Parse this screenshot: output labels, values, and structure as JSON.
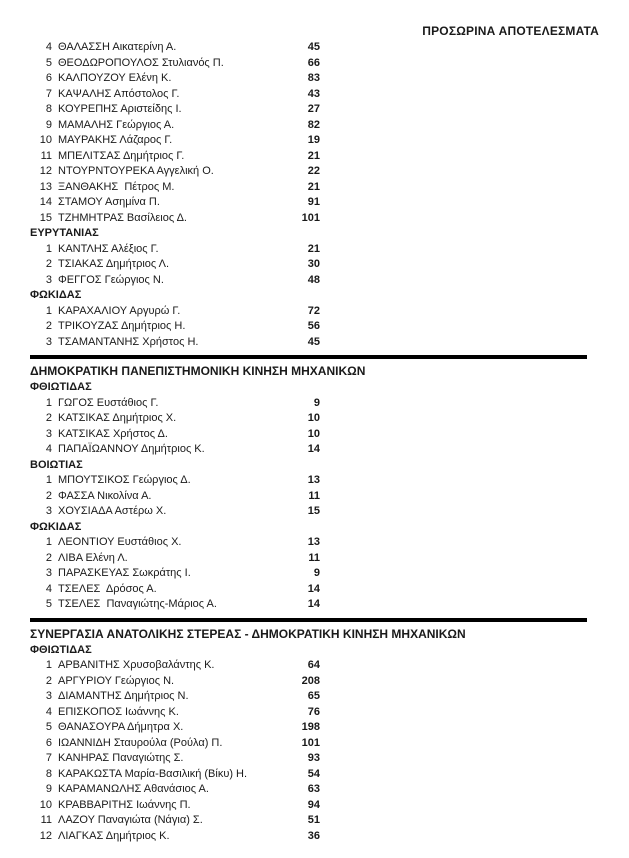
{
  "page_title": "ΠΡΟΣΩΡΙΝΑ ΑΠΟΤΕΛΕΣΜΑΤΑ",
  "colors": {
    "text": "#1a1a1a",
    "background": "#ffffff",
    "divider": "#000000"
  },
  "blocks": [
    {
      "party": "",
      "sections": [
        {
          "name": "",
          "rows": [
            [
              "4",
              "ΘΑΛΑΣΣΗ Αικατερίνη Α.",
              "45"
            ],
            [
              "5",
              "ΘΕΟΔΩΡΟΠΟΥΛΟΣ Στυλιανός Π.",
              "66"
            ],
            [
              "6",
              "ΚΑΛΠΟΥΖΟΥ Ελένη Κ.",
              "83"
            ],
            [
              "7",
              "ΚΑΨΑΛΗΣ Απόστολος Γ.",
              "43"
            ],
            [
              "8",
              "ΚΟΥΡΕΠΗΣ Αριστείδης Ι.",
              "27"
            ],
            [
              "9",
              "ΜΑΜΑΛΗΣ Γεώργιος Α.",
              "82"
            ],
            [
              "10",
              "ΜΑΥΡΑΚΗΣ Λάζαρος Γ.",
              "19"
            ],
            [
              "11",
              "ΜΠΕΛΙΤΣΑΣ Δημήτριος Γ.",
              "21"
            ],
            [
              "12",
              "ΝΤΟΥΡΝΤΟΥΡΕΚΑ Αγγελική Ο.",
              "22"
            ],
            [
              "13",
              "ΞΑΝΘΑΚΗΣ  Πέτρος Μ.",
              "21"
            ],
            [
              "14",
              "ΣΤΑΜΟΥ Ασημίνα Π.",
              "91"
            ],
            [
              "15",
              "ΤΖΗΜΗΤΡΑΣ Βασίλειος Δ.",
              "101"
            ]
          ]
        },
        {
          "name": "ΕΥΡΥΤΑΝΙΑΣ",
          "rows": [
            [
              "1",
              "ΚΑΝΤΛΗΣ Αλέξιος Γ.",
              "21"
            ],
            [
              "2",
              "ΤΣΙΑΚΑΣ Δημήτριος Λ.",
              "30"
            ],
            [
              "3",
              "ΦΕΓΓΟΣ Γεώργιος Ν.",
              "48"
            ]
          ]
        },
        {
          "name": "ΦΩΚΙΔΑΣ",
          "rows": [
            [
              "1",
              "ΚΑΡΑΧΑΛΙΟΥ Αργυρώ Γ.",
              "72"
            ],
            [
              "2",
              "ΤΡΙΚΟΥΖΑΣ Δημήτριος Η.",
              "56"
            ],
            [
              "3",
              "ΤΣΑΜΑΝΤΑΝΗΣ Χρήστος Η.",
              "45"
            ]
          ]
        }
      ]
    },
    {
      "party": "ΔΗΜΟΚΡΑΤΙΚΗ ΠΑΝΕΠΙΣΤΗΜΟΝΙΚΗ ΚΙΝΗΣΗ ΜΗΧΑΝΙΚΩΝ",
      "sections": [
        {
          "name": "ΦΘΙΩΤΙΔΑΣ",
          "rows": [
            [
              "1",
              "ΓΩΓΟΣ Ευστάθιος Γ.",
              "9"
            ],
            [
              "2",
              "ΚΑΤΣΙΚΑΣ Δημήτριος Χ.",
              "10"
            ],
            [
              "3",
              "ΚΑΤΣΙΚΑΣ Χρήστος Δ.",
              "10"
            ],
            [
              "4",
              "ΠΑΠΑΪΩΑΝΝΟΥ Δημήτριος Κ.",
              "14"
            ]
          ]
        },
        {
          "name": "ΒΟΙΩΤΙΑΣ",
          "rows": [
            [
              "1",
              "ΜΠΟΥΤΣΙΚΟΣ Γεώργιος Δ.",
              "13"
            ],
            [
              "2",
              "ΦΑΣΣΑ Νικολίνα Α.",
              "11"
            ],
            [
              "3",
              "ΧΟΥΣΙΑΔΑ Αστέρω Χ.",
              "15"
            ]
          ]
        },
        {
          "name": "ΦΩΚΙΔΑΣ",
          "rows": [
            [
              "1",
              "ΛΕΟΝΤΙΟΥ Ευστάθιος Χ.",
              "13"
            ],
            [
              "2",
              "ΛΙΒΑ Ελένη Λ.",
              "11"
            ],
            [
              "3",
              "ΠΑΡΑΣΚΕΥΑΣ Σωκράτης Ι.",
              "9"
            ],
            [
              "4",
              "ΤΣΕΛΕΣ  Δρόσος Α.",
              "14"
            ],
            [
              "5",
              "ΤΣΕΛΕΣ  Παναγιώτης-Μάριος Α.",
              "14"
            ]
          ]
        }
      ]
    },
    {
      "party": "ΣΥΝΕΡΓΑΣΙΑ ΑΝΑΤΟΛΙΚΗΣ ΣΤΕΡΕΑΣ - ΔΗΜΟΚΡΑΤΙΚΗ ΚΙΝΗΣΗ ΜΗΧΑΝΙΚΩΝ",
      "sections": [
        {
          "name": "ΦΘΙΩΤΙΔΑΣ",
          "rows": [
            [
              "1",
              "ΑΡΒΑΝΙΤΗΣ Χρυσοβαλάντης Κ.",
              "64"
            ],
            [
              "2",
              "ΑΡΓΥΡΙΟΥ Γεώργιος Ν.",
              "208"
            ],
            [
              "3",
              "ΔΙΑΜΑΝΤΗΣ Δημήτριος Ν.",
              "65"
            ],
            [
              "4",
              "ΕΠΙΣΚΟΠΟΣ Ιωάννης Κ.",
              "76"
            ],
            [
              "5",
              "ΘΑΝΑΣΟΥΡΑ Δήμητρα Χ.",
              "198"
            ],
            [
              "6",
              "ΙΩΑΝΝΙΔΗ Σταυρούλα (Ρούλα) Π.",
              "101"
            ],
            [
              "7",
              "ΚΑΝΗΡΑΣ Παναγιώτης Σ.",
              "93"
            ],
            [
              "8",
              "ΚΑΡΑΚΩΣΤΑ Μαρία-Βασιλική (Βίκυ) Η.",
              "54"
            ],
            [
              "9",
              "ΚΑΡΑΜΑΝΩΛΗΣ Αθανάσιος Α.",
              "63"
            ],
            [
              "10",
              "ΚΡΑΒΒΑΡΙΤΗΣ Ιωάννης Π.",
              "94"
            ],
            [
              "11",
              "ΛΑΖΟΥ Παναγιώτα (Νάγια) Σ.",
              "51"
            ],
            [
              "12",
              "ΛΙΑΓΚΑΣ Δημήτριος Κ.",
              "36"
            ]
          ]
        }
      ]
    }
  ]
}
